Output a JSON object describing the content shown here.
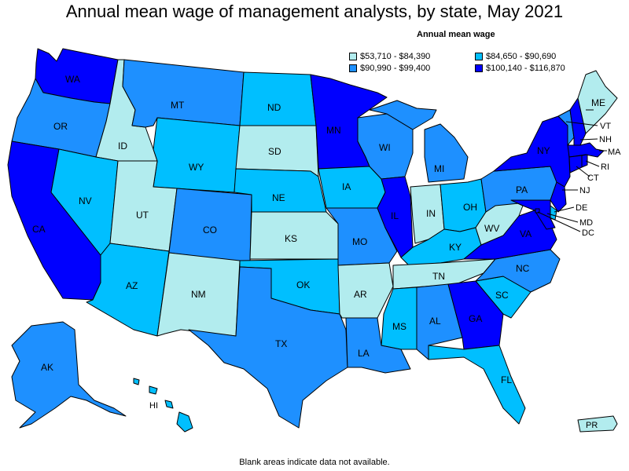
{
  "title": "Annual mean wage of management analysts, by state, May 2021",
  "legend": {
    "title": "Annual mean wage",
    "items": [
      {
        "label": "$53,710 - $84,390",
        "color": "#b2ecee"
      },
      {
        "label": "$84,650 - $90,690",
        "color": "#00bfff"
      },
      {
        "label": "$90,990 - $99,400",
        "color": "#1e90ff"
      },
      {
        "label": "$100,140 - $116,870",
        "color": "#0000ff"
      }
    ]
  },
  "footnote": "Blank areas indicate data not available.",
  "states": {
    "WA": {
      "label": "WA",
      "tier": 3
    },
    "OR": {
      "label": "OR",
      "tier": 2
    },
    "CA": {
      "label": "CA",
      "tier": 3
    },
    "ID": {
      "label": "ID",
      "tier": 0
    },
    "NV": {
      "label": "NV",
      "tier": 1
    },
    "MT": {
      "label": "MT",
      "tier": 2
    },
    "WY": {
      "label": "WY",
      "tier": 1
    },
    "UT": {
      "label": "UT",
      "tier": 0
    },
    "AZ": {
      "label": "AZ",
      "tier": 1
    },
    "CO": {
      "label": "CO",
      "tier": 2
    },
    "NM": {
      "label": "NM",
      "tier": 0
    },
    "ND": {
      "label": "ND",
      "tier": 1
    },
    "SD": {
      "label": "SD",
      "tier": 0
    },
    "NE": {
      "label": "NE",
      "tier": 1
    },
    "KS": {
      "label": "KS",
      "tier": 0
    },
    "OK": {
      "label": "OK",
      "tier": 1
    },
    "TX": {
      "label": "TX",
      "tier": 2
    },
    "MN": {
      "label": "MN",
      "tier": 3
    },
    "IA": {
      "label": "IA",
      "tier": 1
    },
    "MO": {
      "label": "MO",
      "tier": 2
    },
    "AR": {
      "label": "AR",
      "tier": 0
    },
    "LA": {
      "label": "LA",
      "tier": 2
    },
    "WI": {
      "label": "WI",
      "tier": 2
    },
    "IL": {
      "label": "IL",
      "tier": 3
    },
    "MI": {
      "label": "MI",
      "tier": 2
    },
    "IN": {
      "label": "IN",
      "tier": 0
    },
    "OH": {
      "label": "OH",
      "tier": 1
    },
    "KY": {
      "label": "KY",
      "tier": 1
    },
    "TN": {
      "label": "TN",
      "tier": 0
    },
    "MS": {
      "label": "MS",
      "tier": 1
    },
    "AL": {
      "label": "AL",
      "tier": 2
    },
    "GA": {
      "label": "GA",
      "tier": 3
    },
    "FL": {
      "label": "FL",
      "tier": 1
    },
    "SC": {
      "label": "SC",
      "tier": 1
    },
    "NC": {
      "label": "NC",
      "tier": 2
    },
    "VA": {
      "label": "VA",
      "tier": 3
    },
    "WV": {
      "label": "WV",
      "tier": 0
    },
    "PA": {
      "label": "PA",
      "tier": 2
    },
    "NY": {
      "label": "NY",
      "tier": 3
    },
    "VT": {
      "label": "VT",
      "tier": 2
    },
    "NH": {
      "label": "NH",
      "tier": 3
    },
    "ME": {
      "label": "ME",
      "tier": 0
    },
    "MA": {
      "label": "MA",
      "tier": 3
    },
    "RI": {
      "label": "RI",
      "tier": 3
    },
    "CT": {
      "label": "CT",
      "tier": 3
    },
    "NJ": {
      "label": "NJ",
      "tier": 3
    },
    "DE": {
      "label": "DE",
      "tier": 1
    },
    "MD": {
      "label": "MD",
      "tier": 3
    },
    "DC": {
      "label": "DC",
      "tier": 3
    },
    "AK": {
      "label": "AK",
      "tier": 2
    },
    "HI": {
      "label": "HI",
      "tier": 1
    },
    "PR": {
      "label": "PR",
      "tier": 0
    }
  }
}
